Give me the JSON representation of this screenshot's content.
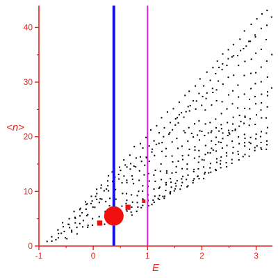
{
  "chart_data": {
    "type": "scatter",
    "xlabel": "E",
    "ylabel": "<n>",
    "xlim": [
      -1,
      3.3
    ],
    "ylim": [
      0,
      44
    ],
    "x_ticks": [
      -1,
      0,
      1,
      2,
      3
    ],
    "y_ticks": [
      0,
      10,
      20,
      30,
      40
    ],
    "grid": false,
    "axis_color": "#e8211a",
    "dots_color": "#000000",
    "vertical_lines": [
      {
        "x": 0.38,
        "color": "#1414e6"
      },
      {
        "x": 1.0,
        "color": "#e020e0"
      }
    ],
    "markers_color": "#f01010",
    "markers": [
      {
        "x": 0.38,
        "y": 5.5,
        "weight": 1.0
      },
      {
        "x": 0.12,
        "y": 4.2,
        "weight": 0.33
      },
      {
        "x": 0.64,
        "y": 7.1,
        "weight": 0.33
      },
      {
        "x": 0.93,
        "y": 8.2,
        "weight": 0.15
      }
    ],
    "bands": [
      {
        "x0": -0.85,
        "y0": 0.8,
        "x1": 3.3,
        "y1": 44.5,
        "n": 42,
        "wobble": 0.35
      },
      {
        "x0": -0.75,
        "y0": 1.0,
        "x1": 3.3,
        "y1": 41.5,
        "n": 40,
        "wobble": 0.5
      },
      {
        "x0": -0.65,
        "y0": 1.5,
        "x1": 3.2,
        "y1": 37.5,
        "n": 39,
        "wobble": 0.6
      },
      {
        "x0": -0.5,
        "y0": 2.0,
        "x1": 3.3,
        "y1": 35.0,
        "n": 38,
        "wobble": 0.7
      },
      {
        "x0": -0.3,
        "y0": 2.5,
        "x1": 3.3,
        "y1": 32.0,
        "n": 36,
        "wobble": 0.5
      },
      {
        "x0": -0.1,
        "y0": 3.0,
        "x1": 3.3,
        "y1": 29.5,
        "n": 34,
        "wobble": 0.6
      },
      {
        "x0": 0.1,
        "y0": 3.8,
        "x1": 3.3,
        "y1": 28.0,
        "n": 32,
        "wobble": 0.6
      },
      {
        "x0": 0.3,
        "y0": 4.5,
        "x1": 3.3,
        "y1": 26.0,
        "n": 30,
        "wobble": 0.5
      },
      {
        "x0": 0.5,
        "y0": 5.2,
        "x1": 3.3,
        "y1": 24.5,
        "n": 28,
        "wobble": 0.5
      },
      {
        "x0": 0.7,
        "y0": 6.0,
        "x1": 3.3,
        "y1": 22.5,
        "n": 26,
        "wobble": 0.4
      },
      {
        "x0": 0.9,
        "y0": 6.8,
        "x1": 3.3,
        "y1": 21.5,
        "n": 24,
        "wobble": 0.4
      },
      {
        "x0": 1.1,
        "y0": 7.8,
        "x1": 3.3,
        "y1": 20.0,
        "n": 22,
        "wobble": 0.35
      },
      {
        "x0": 1.3,
        "y0": 9.0,
        "x1": 3.3,
        "y1": 18.8,
        "n": 20,
        "wobble": 0.3
      },
      {
        "x0": -0.7,
        "y0": 1.0,
        "x1": 0.4,
        "y1": 13.0,
        "n": 10,
        "wobble": 0.3
      },
      {
        "x0": -0.5,
        "y0": 1.5,
        "x1": 0.6,
        "y1": 14.5,
        "n": 10,
        "wobble": 0.3
      },
      {
        "x0": 0.6,
        "y0": 12.0,
        "x1": 1.5,
        "y1": 22.0,
        "n": 10,
        "wobble": 0.3
      },
      {
        "x0": 1.5,
        "y0": 23.0,
        "x1": 2.3,
        "y1": 30.0,
        "n": 9,
        "wobble": 0.3
      },
      {
        "x0": 2.3,
        "y0": 32.5,
        "x1": 3.0,
        "y1": 38.5,
        "n": 8,
        "wobble": 0.3
      },
      {
        "x0": 1.7,
        "y0": 20.5,
        "x1": 2.6,
        "y1": 21.0,
        "n": 10,
        "wobble": 0.4
      },
      {
        "x0": 2.0,
        "y0": 16.0,
        "x1": 2.8,
        "y1": 23.5,
        "n": 9,
        "wobble": 0.4
      },
      {
        "x0": 2.8,
        "y0": 19.5,
        "x1": 3.3,
        "y1": 17.0,
        "n": 6,
        "wobble": 0.3
      }
    ]
  }
}
